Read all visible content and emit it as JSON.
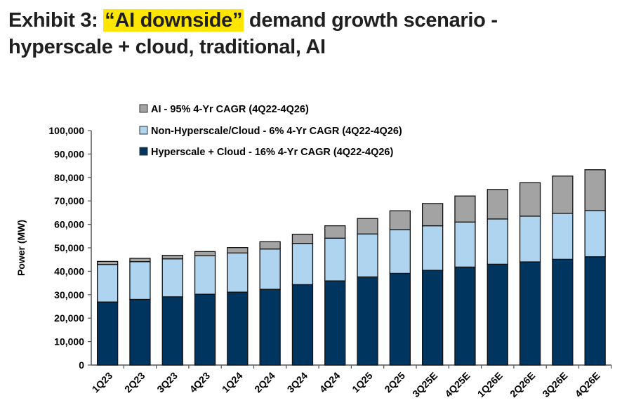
{
  "title": {
    "prefix": "Exhibit 3: ",
    "highlight": "“AI downside”",
    "line1_rest": " demand growth scenario -",
    "line2": "hyperscale + cloud, traditional, AI"
  },
  "chart_data": {
    "type": "bar",
    "stacked": true,
    "title": "Exhibit 3: “AI downside” demand growth scenario - hyperscale + cloud, traditional, AI",
    "xlabel": "",
    "ylabel": "Power (MW)",
    "ylim": [
      0,
      100000
    ],
    "yticks": [
      0,
      10000,
      20000,
      30000,
      40000,
      50000,
      60000,
      70000,
      80000,
      90000,
      100000
    ],
    "ytick_labels": [
      "0",
      "10,000",
      "20,000",
      "30,000",
      "40,000",
      "50,000",
      "60,000",
      "70,000",
      "80,000",
      "90,000",
      "100,000"
    ],
    "legend_position": "top-left",
    "categories": [
      "1Q23",
      "2Q23",
      "3Q23",
      "4Q23",
      "1Q24",
      "2Q24",
      "3Q24",
      "4Q24",
      "1Q25",
      "2Q25",
      "3Q25E",
      "4Q25E",
      "1Q26E",
      "2Q26E",
      "3Q26E",
      "4Q26E"
    ],
    "series": [
      {
        "name": "Hyperscale + Cloud - 16% 4-Yr CAGR (4Q22-4Q26)",
        "color": "#003560",
        "values": [
          26900,
          28000,
          29100,
          30200,
          31100,
          32300,
          34300,
          35900,
          37600,
          39100,
          40400,
          41800,
          43000,
          44000,
          45100,
          46200
        ]
      },
      {
        "name": "Non-Hyperscale/Cloud - 6% 4-Yr CAGR (4Q22-4Q26)",
        "color": "#aed4f0",
        "values": [
          16000,
          16100,
          16200,
          16400,
          16700,
          17200,
          17600,
          18200,
          18300,
          18600,
          19000,
          19200,
          19300,
          19500,
          19600,
          19700
        ]
      },
      {
        "name": "AI - 95% 4-Yr CAGR (4Q22-4Q26)",
        "color": "#a3a3a3",
        "values": [
          1300,
          1400,
          1500,
          1800,
          2300,
          3100,
          3900,
          5300,
          6600,
          8100,
          9500,
          11100,
          12600,
          14300,
          15900,
          17400
        ]
      }
    ],
    "legend_order": [
      2,
      1,
      0
    ]
  }
}
